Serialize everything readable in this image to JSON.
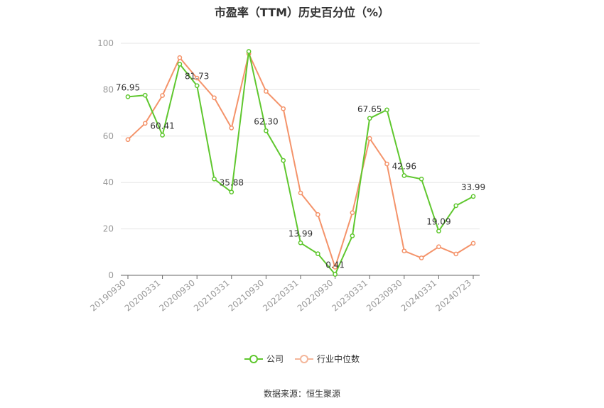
{
  "chart_data": {
    "type": "line",
    "title": "市盈率（TTM）历史百分位（%）",
    "source": "数据来源：恒生聚源",
    "ylim": [
      0,
      100
    ],
    "yticks": [
      "0",
      "20",
      "40",
      "60",
      "80",
      "100"
    ],
    "x_tick_labels": [
      "20190930",
      "20200331",
      "20200930",
      "20210331",
      "20210930",
      "20220331",
      "20220930",
      "20230331",
      "20230930",
      "20240331",
      "20240723"
    ],
    "grid": true,
    "legend_position": "bottom",
    "series": [
      {
        "name": "公司",
        "color": "#5fc72e",
        "values": [
          76.95,
          77.6,
          60.41,
          91.0,
          81.73,
          41.5,
          35.88,
          96.5,
          62.3,
          49.5,
          13.99,
          9.3,
          0.41,
          17.0,
          67.65,
          71.3,
          42.96,
          41.5,
          19.09,
          30.0,
          33.99
        ],
        "labels": [
          "76.95",
          "",
          "60.41",
          "",
          "81.73",
          "",
          "35.88",
          "",
          "62.30",
          "",
          "13.99",
          "",
          "0.41",
          "",
          "67.65",
          "",
          "42.96",
          "",
          "19.09",
          "",
          "33.99"
        ]
      },
      {
        "name": "行业中位数",
        "color": "#f4936a",
        "values": [
          58.5,
          65.5,
          77.5,
          93.8,
          85.0,
          76.5,
          63.5,
          95.5,
          79.3,
          71.8,
          35.5,
          26.2,
          3.5,
          27.0,
          59.0,
          48.0,
          10.5,
          7.5,
          12.3,
          9.2,
          13.8
        ]
      }
    ]
  }
}
